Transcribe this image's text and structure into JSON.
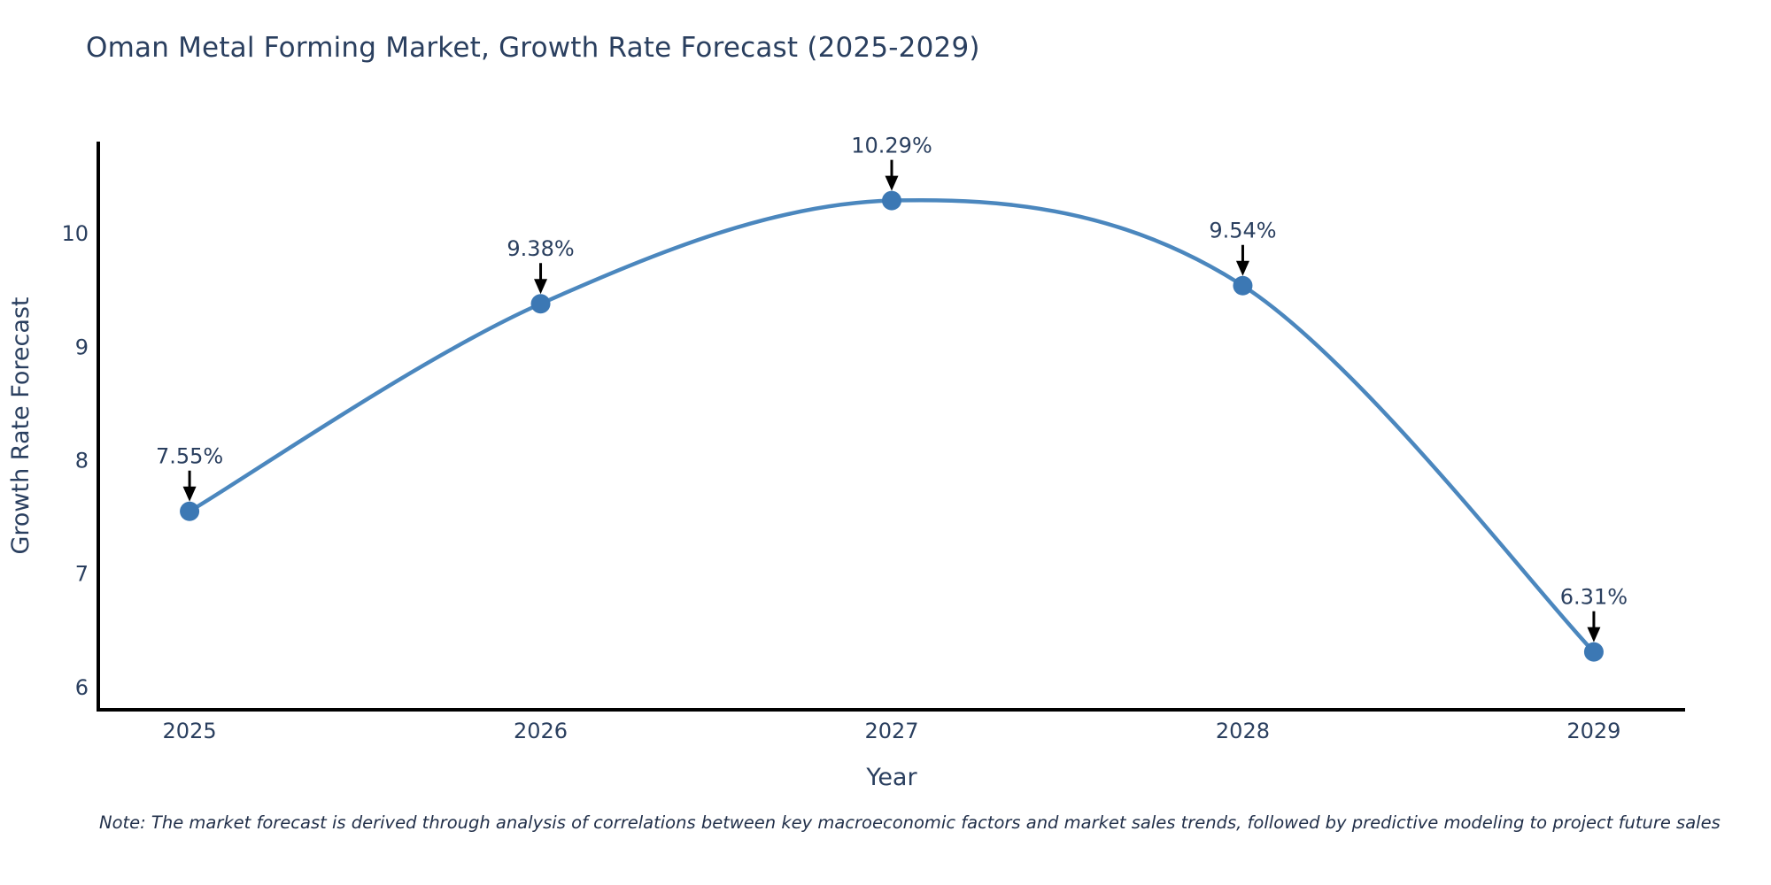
{
  "figure": {
    "note": "Note: The market forecast is derived through analysis of correlations between key macroeconomic factors and market sales trends, followed by predictive modeling to project future sales"
  },
  "chart_data": {
    "type": "line",
    "title": "Oman Metal Forming Market, Growth Rate Forecast (2025-2029)",
    "xlabel": "Year",
    "ylabel": "Growth Rate Forecast",
    "x": [
      2025,
      2026,
      2027,
      2028,
      2029
    ],
    "values": [
      7.55,
      9.38,
      10.29,
      9.54,
      6.31
    ],
    "point_labels": [
      "7.55%",
      "9.38%",
      "10.29%",
      "9.54%",
      "6.31%"
    ],
    "x_tick_labels": [
      "2025",
      "2026",
      "2027",
      "2028",
      "2029"
    ],
    "y_ticks": [
      6,
      7,
      8,
      9,
      10
    ],
    "xlim": [
      2024.74,
      2029.26
    ],
    "ylim": [
      5.8,
      10.81
    ],
    "grid": false,
    "legend_position": "none",
    "line_shape": "spline",
    "colors": {
      "line": "#4b87be",
      "marker": "#3c78b4",
      "text": "#2a3f5f",
      "axis": "#000000",
      "arrow": "#000000",
      "background": "#ffffff"
    }
  }
}
